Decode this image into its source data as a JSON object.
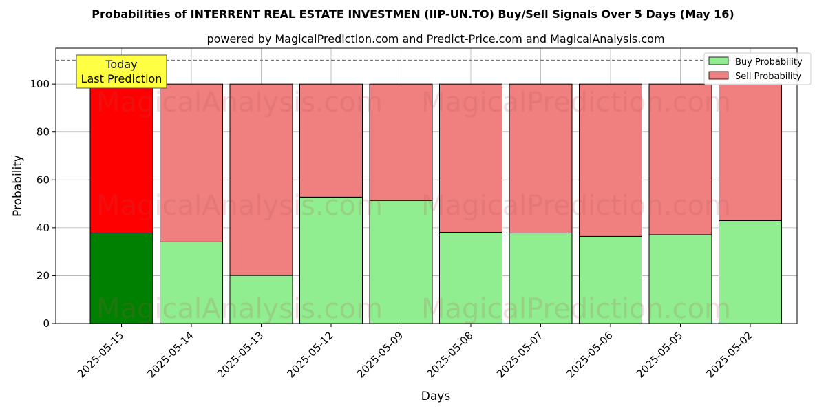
{
  "chart_data": {
    "type": "bar",
    "stacked": true,
    "title": "Probabilities of INTERRENT REAL ESTATE INVESTMEN (IIP-UN.TO) Buy/Sell Signals Over 5 Days (May 16)",
    "subtitle": "powered by MagicalPrediction.com and Predict-Price.com and MagicalAnalysis.com",
    "xlabel": "Days",
    "ylabel": "Probability",
    "ylim": [
      0,
      115
    ],
    "yticks": [
      0,
      20,
      40,
      60,
      80,
      100
    ],
    "grid": true,
    "legend_position": "top-right",
    "reference_line": 110,
    "categories": [
      "2025-05-15",
      "2025-05-14",
      "2025-05-13",
      "2025-05-12",
      "2025-05-09",
      "2025-05-08",
      "2025-05-07",
      "2025-05-06",
      "2025-05-05",
      "2025-05-02"
    ],
    "series": [
      {
        "name": "Buy Probability",
        "color": "#90ee90",
        "highlight_color": "#008000",
        "values": [
          37.8,
          34.1,
          20.1,
          52.8,
          51.4,
          38.1,
          37.8,
          36.4,
          37.1,
          43.0
        ]
      },
      {
        "name": "Sell Probability",
        "color": "#f08080",
        "highlight_color": "#ff0000",
        "values": [
          62.2,
          65.9,
          79.9,
          47.2,
          48.6,
          61.9,
          62.2,
          63.6,
          62.9,
          57.0
        ]
      }
    ],
    "highlight_index": 0,
    "annotation": {
      "line1": "Today",
      "line2": "Last Prediction",
      "color": "#ffff44"
    },
    "watermarks": [
      "MagicalAnalysis.com",
      "MagicalPrediction.com"
    ]
  }
}
